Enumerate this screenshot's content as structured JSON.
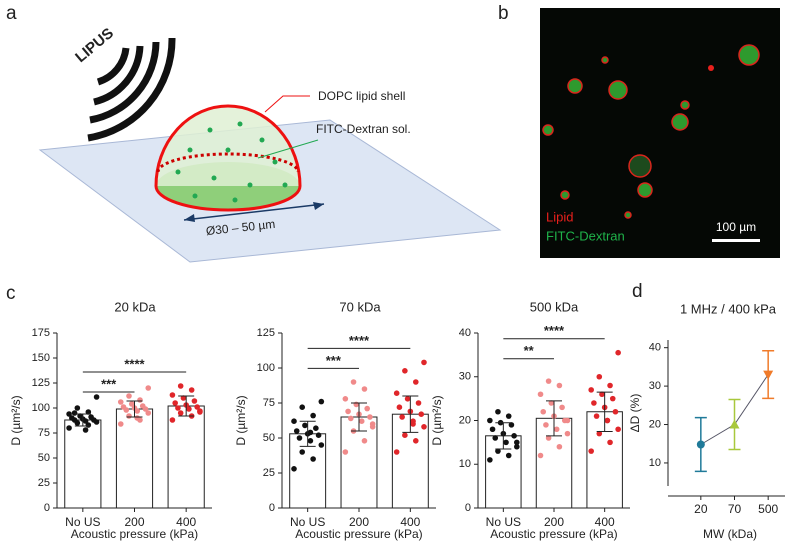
{
  "panel_labels": [
    "a",
    "b",
    "c",
    "d"
  ],
  "schematic": {
    "source": "LIPUS",
    "shell": "DOPC lipid shell",
    "core": "FITC-Dextran sol.",
    "size": "Ø30 – 50 µm"
  },
  "micrograph": {
    "channels": [
      {
        "name": "Lipid",
        "color": "#e8201c"
      },
      {
        "name": "FITC-Dextran",
        "color": "#1fb34a"
      }
    ],
    "scale_bar": "100 µm"
  },
  "chart_data": [
    {
      "type": "bar",
      "title": "20 kDa",
      "x_label": "Acoustic pressure (kPa)",
      "y_label": "D (µm²/s)",
      "categories": [
        "No US",
        "200",
        "400"
      ],
      "values": [
        88,
        99,
        102
      ],
      "errors": [
        6,
        8,
        10
      ],
      "point_colors": [
        "#111111",
        "#f08a8a",
        "#e0262a"
      ],
      "points": [
        [
          80,
          83,
          85,
          86,
          87,
          88,
          88,
          89,
          90,
          91,
          92,
          94,
          96,
          100,
          111,
          78,
          95
        ],
        [
          84,
          88,
          92,
          95,
          97,
          98,
          99,
          100,
          101,
          102,
          104,
          106,
          108,
          112,
          120,
          90
        ],
        [
          88,
          92,
          95,
          97,
          99,
          100,
          101,
          103,
          105,
          107,
          110,
          113,
          118,
          122,
          96
        ]
      ],
      "significance": [
        {
          "between": [
            "No US",
            "200"
          ],
          "label": "***"
        },
        {
          "between": [
            "No US",
            "400"
          ],
          "label": "****"
        }
      ],
      "ylim": [
        0,
        175
      ],
      "yticks": [
        0,
        25,
        50,
        75,
        100,
        125,
        150,
        175
      ]
    },
    {
      "type": "bar",
      "title": "70 kDa",
      "x_label": "Acoustic pressure (kPa)",
      "y_label": "D (µm²/s)",
      "categories": [
        "No US",
        "200",
        "400"
      ],
      "values": [
        53,
        65,
        67
      ],
      "errors": [
        9,
        10,
        13
      ],
      "point_colors": [
        "#111111",
        "#f08a8a",
        "#e0262a"
      ],
      "points": [
        [
          28,
          35,
          40,
          45,
          48,
          50,
          52,
          53,
          55,
          57,
          59,
          62,
          66,
          72,
          76,
          54
        ],
        [
          40,
          48,
          55,
          58,
          62,
          64,
          65,
          67,
          69,
          71,
          74,
          78,
          85,
          90,
          60
        ],
        [
          40,
          48,
          52,
          58,
          62,
          65,
          67,
          69,
          72,
          75,
          78,
          82,
          90,
          98,
          104,
          60
        ]
      ],
      "significance": [
        {
          "between": [
            "No US",
            "200"
          ],
          "label": "***"
        },
        {
          "between": [
            "No US",
            "400"
          ],
          "label": "****"
        }
      ],
      "ylim": [
        0,
        125
      ],
      "yticks": [
        0,
        25,
        50,
        75,
        100,
        125
      ]
    },
    {
      "type": "bar",
      "title": "500 kDa",
      "x_label": "Acoustic pressure (kPa)",
      "y_label": "D (µm²/s)",
      "categories": [
        "No US",
        "200",
        "400"
      ],
      "values": [
        16.5,
        20.5,
        22
      ],
      "errors": [
        3,
        4,
        4.5
      ],
      "point_colors": [
        "#111111",
        "#f08a8a",
        "#e0262a"
      ],
      "points": [
        [
          11,
          12,
          13,
          14,
          15,
          16,
          16.5,
          17,
          18,
          19,
          19.5,
          20,
          21,
          22,
          15
        ],
        [
          12,
          14,
          16,
          17,
          18,
          19,
          20,
          21,
          22,
          23,
          24,
          26,
          28,
          29,
          20
        ],
        [
          13,
          15,
          17,
          18,
          20,
          21,
          22,
          23,
          24,
          25,
          26,
          27,
          28,
          30,
          35.5,
          20
        ]
      ],
      "significance": [
        {
          "between": [
            "No US",
            "200"
          ],
          "label": "**"
        },
        {
          "between": [
            "No US",
            "400"
          ],
          "label": "****"
        }
      ],
      "ylim": [
        0,
        40
      ],
      "yticks": [
        0,
        10,
        20,
        30,
        40
      ]
    },
    {
      "type": "line",
      "title": "1 MHz / 400 kPa",
      "x_label": "MW (kDa)",
      "y_label": "ΔD (%)",
      "categories": [
        "20",
        "70",
        "500"
      ],
      "values": [
        14.8,
        20,
        33
      ],
      "errors": [
        7,
        6.5,
        6.2
      ],
      "colors": [
        "#1f7a99",
        "#a8c83c",
        "#f07b2a"
      ],
      "markers": [
        "circle",
        "triangle-up",
        "triangle-down"
      ],
      "ylim": [
        4,
        42
      ],
      "yticks": [
        10,
        20,
        30,
        40
      ]
    }
  ]
}
